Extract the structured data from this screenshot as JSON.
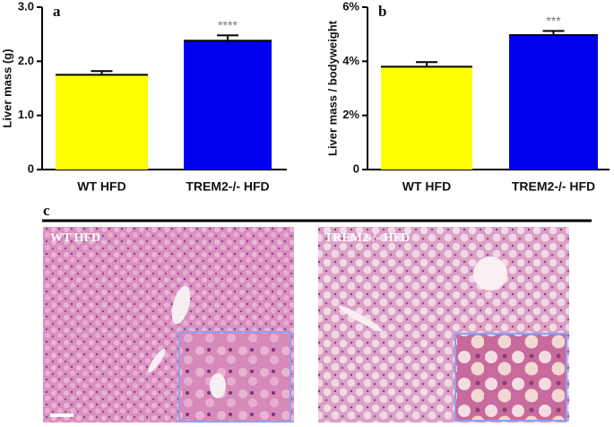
{
  "chart_data": [
    {
      "type": "bar",
      "panel": "a",
      "y_label": "Liver mass (g)",
      "categories": [
        "WT HFD",
        "TREM2-/- HFD"
      ],
      "values": [
        1.75,
        2.38
      ],
      "errors": [
        0.07,
        0.1
      ],
      "colors": [
        "#ffff00",
        "#0000ee"
      ],
      "significance": [
        null,
        "****"
      ],
      "ylim": [
        0,
        3
      ],
      "yticks": [
        0,
        {
          "value": 1,
          "label": "1.0"
        },
        {
          "value": 2,
          "label": "2.0"
        },
        {
          "value": 3,
          "label": "3.0"
        }
      ]
    },
    {
      "type": "bar",
      "panel": "b",
      "y_label": "Liver mass / bodyweight",
      "categories": [
        "WT HFD",
        "TREM2-/- HFD"
      ],
      "values": [
        3.8,
        4.97
      ],
      "errors": [
        0.17,
        0.15
      ],
      "colors": [
        "#ffff00",
        "#0000ee"
      ],
      "significance": [
        null,
        "***"
      ],
      "ylim": [
        0,
        6
      ],
      "yticks": [
        0,
        {
          "value": 2,
          "label": "2%"
        },
        {
          "value": 4,
          "label": "4%"
        },
        {
          "value": 6,
          "label": "6%"
        }
      ]
    }
  ],
  "panel_c": {
    "panel": "c",
    "images": [
      "WT HFD",
      "TREM2-/- HFD"
    ]
  }
}
